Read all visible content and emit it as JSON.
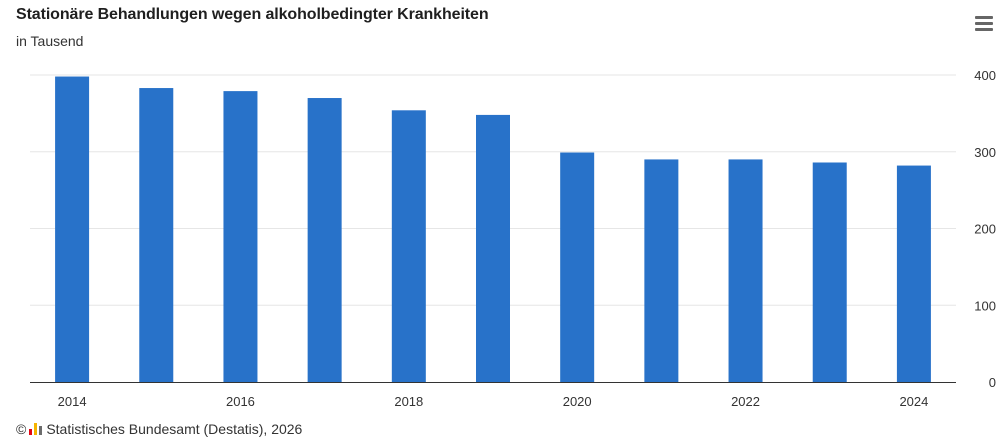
{
  "header": {
    "title": "Stationäre Behandlungen wegen alkoholbedingter Krankheiten",
    "subtitle": "in Tausend",
    "menu_icon": "hamburger-menu-icon"
  },
  "footer": {
    "copyright_symbol": "©",
    "logo_icon": "destatis-logo-icon",
    "source_text": "Statistisches Bundesamt (Destatis), 2026"
  },
  "colors": {
    "bar": "#2872c9",
    "grid": "#e6e6e6",
    "axis": "#333333",
    "logo_bars": [
      "#e30613",
      "#f5b400",
      "#6c6c6c"
    ]
  },
  "chart_data": {
    "type": "bar",
    "title": "Stationäre Behandlungen wegen alkoholbedingter Krankheiten",
    "subtitle": "in Tausend",
    "categories": [
      "2014",
      "2015",
      "2016",
      "2017",
      "2018",
      "2019",
      "2020",
      "2021",
      "2022",
      "2023",
      "2024"
    ],
    "x_tick_labels": [
      "2014",
      "2016",
      "2018",
      "2020",
      "2022",
      "2024"
    ],
    "values": [
      398,
      383,
      379,
      370,
      354,
      348,
      299,
      290,
      290,
      286,
      282
    ],
    "ylim": [
      0,
      400
    ],
    "y_ticks": [
      0,
      100,
      200,
      300,
      400
    ],
    "y_axis_side": "right",
    "grid": true,
    "legend": "none"
  }
}
